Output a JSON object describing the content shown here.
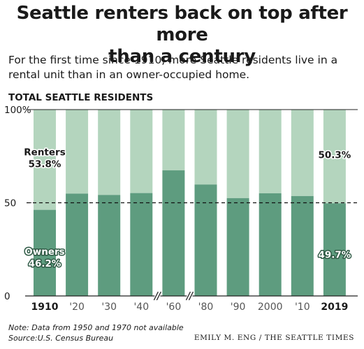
{
  "headline_line1": "Seattle renters back on top after more",
  "headline_line2": "than a century",
  "subtitle_line1": "For the first time since 1910, more Seattle residents live in a",
  "subtitle_line2": "rental unit than in an owner-occupied home.",
  "note_line1": "Note: Data from 1950 and 1970 not available",
  "note_line2": "Source:U.S. Census Bureau",
  "credit": "EMILY M. ENG / THE SEATTLE TIMES",
  "colors": {
    "owners": "#5e9c7f",
    "renters": "#b4d5be",
    "text": "#1a1a1a"
  },
  "chart_data": {
    "type": "bar",
    "stacked": true,
    "title": "TOTAL SEATTLE RESIDENTS",
    "categories": [
      "1910",
      "'20",
      "'30",
      "'40",
      "'60",
      "'80",
      "'90",
      "2000",
      "'10",
      "2019"
    ],
    "bold_categories": [
      "1910",
      "2019"
    ],
    "axis_break_before": [
      "'60",
      "'80"
    ],
    "y_ticks": [
      "100%",
      "50",
      "0"
    ],
    "y_tick_values": [
      100,
      50,
      0
    ],
    "ylim": [
      0,
      100
    ],
    "reference_line": 50,
    "series": [
      {
        "name": "Owners",
        "values": [
          46.2,
          54.9,
          54.2,
          55.2,
          67.4,
          59.8,
          52.5,
          55.1,
          53.6,
          49.7
        ]
      },
      {
        "name": "Renters",
        "values": [
          53.8,
          45.1,
          45.8,
          44.8,
          32.6,
          40.2,
          47.5,
          44.9,
          46.4,
          50.3
        ]
      }
    ],
    "annotations": [
      {
        "series": "Renters",
        "category": "1910",
        "label": "Renters",
        "value_label": "53.8%"
      },
      {
        "series": "Owners",
        "category": "1910",
        "label": "Owners",
        "value_label": "46.2%"
      },
      {
        "series": "Renters",
        "category": "2019",
        "label": "",
        "value_label": "50.3%"
      },
      {
        "series": "Owners",
        "category": "2019",
        "label": "",
        "value_label": "49.7%"
      }
    ]
  }
}
